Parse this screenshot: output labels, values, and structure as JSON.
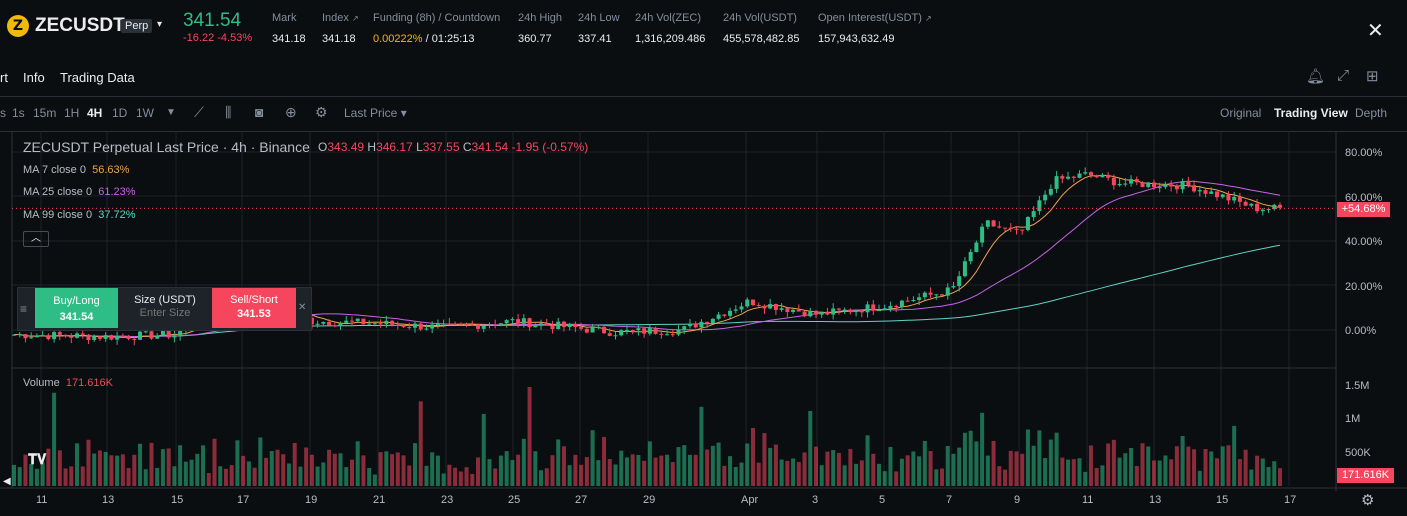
{
  "header": {
    "coin_icon": "zec-coin-icon",
    "symbol": "ZECUSDT",
    "badge": "Perp",
    "last_price": "341.54",
    "change_abs": "-16.22",
    "change_pct": "-4.53%",
    "stats": [
      {
        "label": "Mark",
        "value": "341.18"
      },
      {
        "label": "Index",
        "value": "341.18"
      },
      {
        "label": "Funding (8h) / Countdown",
        "rate": "0.00222%",
        "countdown": "/ 01:25:13"
      },
      {
        "label": "24h High",
        "value": "360.77"
      },
      {
        "label": "24h Low",
        "value": "337.41"
      },
      {
        "label": "24h Vol(ZEC)",
        "value": "1,316,209.486"
      },
      {
        "label": "24h Vol(USDT)",
        "value": "455,578,482.85"
      },
      {
        "label": "Open Interest(USDT)",
        "value": "157,943,632.49"
      }
    ]
  },
  "tabs": [
    "rt",
    "Info",
    "Trading Data"
  ],
  "toolbar": {
    "timeframes": [
      "1s",
      "15m",
      "1H",
      "4H",
      "1D",
      "1W"
    ],
    "active_timeframe": "4H",
    "price_type": "Last Price",
    "views": [
      "Original",
      "Trading View",
      "Depth"
    ],
    "active_view": "Trading View"
  },
  "chart": {
    "title": "ZECUSDT Perpetual Last Price · 4h · Binance",
    "ohlc": {
      "o": "343.49",
      "h": "346.17",
      "l": "337.55",
      "c": "341.54",
      "chg": "-1.95 (-0.57%)"
    },
    "ma": [
      {
        "label": "MA 7 close 0",
        "value": "56.63%",
        "color": "#f0a24b"
      },
      {
        "label": "MA 25 close 0",
        "value": "61.23%",
        "color": "#c764e8"
      },
      {
        "label": "MA 99 close 0",
        "value": "37.72%",
        "color": "#5fd3c5"
      }
    ],
    "y_labels": [
      "80.00%",
      "60.00%",
      "40.00%",
      "20.00%",
      "0.00%"
    ],
    "price_tag": "+54.68%",
    "volume_label": "Volume",
    "volume_value": "171.616K",
    "vol_y_labels": [
      "1.5M",
      "1M",
      "500K"
    ],
    "vol_tag": "171.616K",
    "x_labels": [
      "11",
      "13",
      "15",
      "17",
      "19",
      "21",
      "23",
      "25",
      "27",
      "29",
      "Apr",
      "3",
      "5",
      "7",
      "9",
      "11",
      "13",
      "15",
      "17"
    ]
  },
  "trade": {
    "buy_label": "Buy/Long",
    "buy_price": "341.54",
    "size_label": "Size (USDT)",
    "size_placeholder": "Enter Size",
    "sell_label": "Sell/Short",
    "sell_price": "341.53"
  },
  "colors": {
    "up": "#2ebd85",
    "down": "#f6465d",
    "accent": "#f0b90b"
  },
  "chart_data": {
    "type": "candlestick",
    "x_unit": "date (Mar 10 – Apr 16)",
    "y_unit": "percent change",
    "ylim": [
      -5,
      85
    ],
    "trend_points": [
      {
        "x": "Mar 10",
        "y": -2
      },
      {
        "x": "Mar 13",
        "y": -3
      },
      {
        "x": "Mar 15",
        "y": -2
      },
      {
        "x": "Mar 16",
        "y": 9
      },
      {
        "x": "Mar 18",
        "y": 10
      },
      {
        "x": "Mar 19",
        "y": 4
      },
      {
        "x": "Mar 21",
        "y": 3
      },
      {
        "x": "Mar 23",
        "y": 1
      },
      {
        "x": "Mar 25",
        "y": 4
      },
      {
        "x": "Mar 28",
        "y": -1
      },
      {
        "x": "Mar 30",
        "y": 0
      },
      {
        "x": "Apr 1",
        "y": 13
      },
      {
        "x": "Apr 3",
        "y": 7
      },
      {
        "x": "Apr 5",
        "y": 11
      },
      {
        "x": "Apr 7",
        "y": 18
      },
      {
        "x": "Apr 8",
        "y": 48
      },
      {
        "x": "Apr 9",
        "y": 43
      },
      {
        "x": "Apr 10",
        "y": 67
      },
      {
        "x": "Apr 11",
        "y": 70
      },
      {
        "x": "Apr 12",
        "y": 66
      },
      {
        "x": "Apr 14",
        "y": 65
      },
      {
        "x": "Apr 15",
        "y": 60
      },
      {
        "x": "Apr 16",
        "y": 54.68
      }
    ]
  }
}
